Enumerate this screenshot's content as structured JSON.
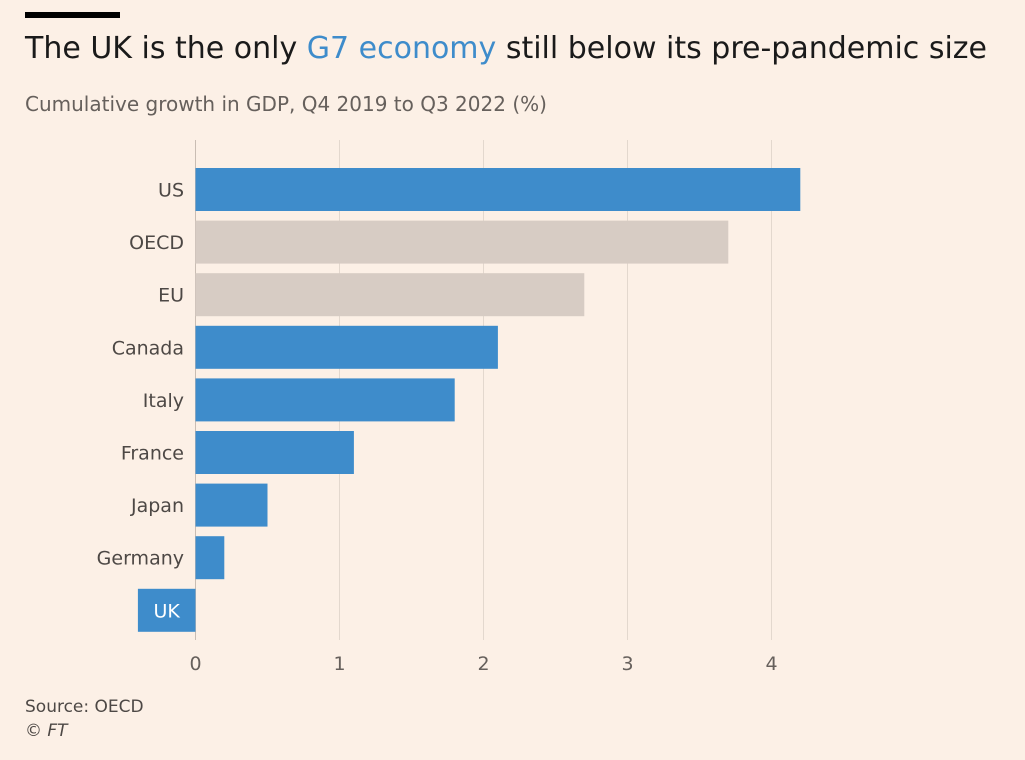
{
  "header": {
    "title_pre": "The UK is the only ",
    "title_highlight": "G7 economy",
    "title_post": " still below its pre-pandemic size",
    "subtitle": "Cumulative growth in GDP, Q4 2019 to Q3 2022 (%)"
  },
  "colors": {
    "g7": "#3E8CCB",
    "aggregate": "#D7CCC4",
    "background": "#FCF0E6",
    "grid": "#E3D8CE"
  },
  "chart_data": {
    "type": "bar",
    "orientation": "horizontal",
    "title": "The UK is the only G7 economy still below its pre-pandemic size",
    "subtitle": "Cumulative growth in GDP, Q4 2019 to Q3 2022 (%)",
    "xlabel": "",
    "ylabel": "",
    "xlim": [
      -0.4,
      4.4
    ],
    "xticks": [
      0,
      1,
      2,
      3,
      4
    ],
    "grid": true,
    "categories": [
      "US",
      "OECD",
      "EU",
      "Canada",
      "Italy",
      "France",
      "Japan",
      "Germany",
      "UK"
    ],
    "values": [
      4.2,
      3.7,
      2.7,
      2.1,
      1.8,
      1.1,
      0.5,
      0.2,
      -0.4
    ],
    "groups": [
      "g7",
      "aggregate",
      "aggregate",
      "g7",
      "g7",
      "g7",
      "g7",
      "g7",
      "g7"
    ],
    "label_inside": [
      "UK"
    ]
  },
  "footer": {
    "source": "Source: OECD",
    "copyright": "© FT"
  }
}
